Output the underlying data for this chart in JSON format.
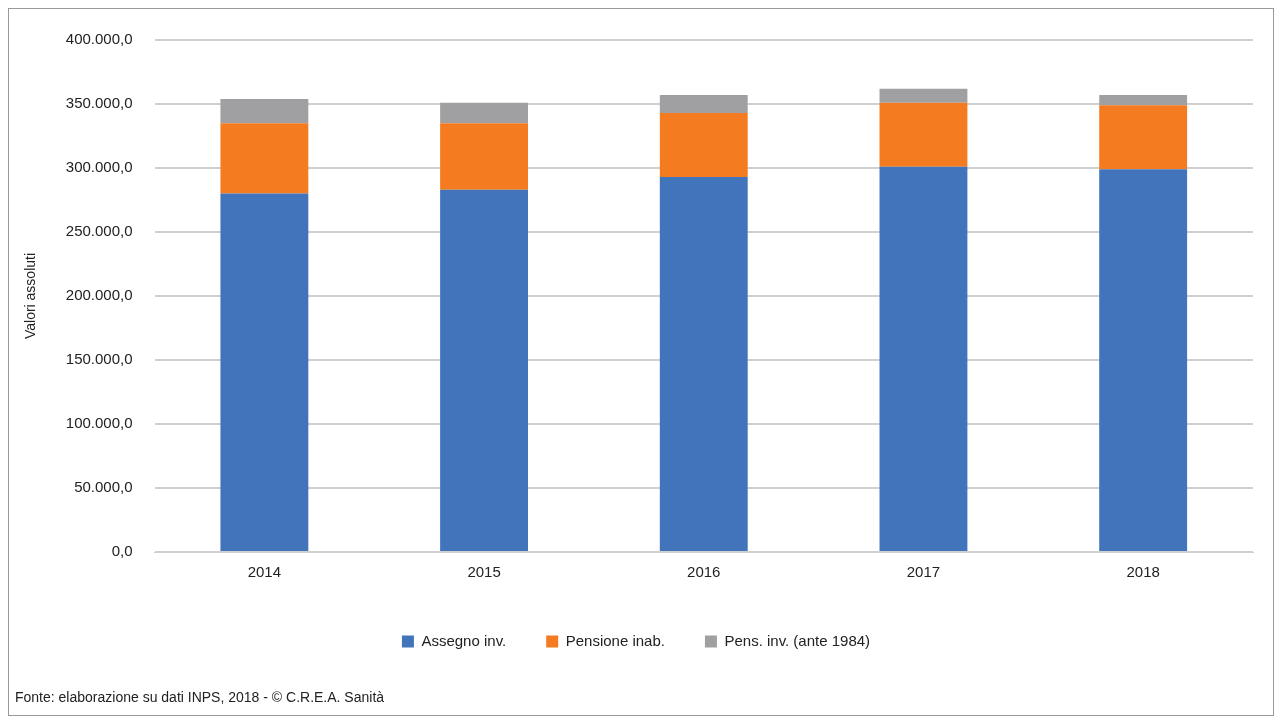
{
  "chart_data": {
    "type": "bar",
    "stacked": true,
    "ylabel": "Valori assoluti",
    "categories": [
      "2014",
      "2015",
      "2016",
      "2017",
      "2018"
    ],
    "series": [
      {
        "name": "Assegno inv.",
        "color": "#4174bb",
        "values": [
          280000,
          283000,
          293000,
          301000,
          299000
        ]
      },
      {
        "name": "Pensione inab.",
        "color": "#f47b20",
        "values": [
          55000,
          52000,
          50000,
          50000,
          50000
        ]
      },
      {
        "name": "Pens. inv. (ante 1984)",
        "color": "#a0a0a3",
        "values": [
          19000,
          16000,
          14000,
          11000,
          8000
        ]
      }
    ],
    "ylim": [
      0,
      400000
    ],
    "yticks": [
      {
        "value": 0,
        "label": "0,0"
      },
      {
        "value": 50000,
        "label": "50.000,0"
      },
      {
        "value": 100000,
        "label": "100.000,0"
      },
      {
        "value": 150000,
        "label": "150.000,0"
      },
      {
        "value": 200000,
        "label": "200.000,0"
      },
      {
        "value": 250000,
        "label": "250.000,0"
      },
      {
        "value": 300000,
        "label": "300.000,0"
      },
      {
        "value": 350000,
        "label": "350.000,0"
      },
      {
        "value": 400000,
        "label": "400.000,0"
      }
    ],
    "grid": "y",
    "legend": "bottom",
    "annotations": [
      "Fonte: elaborazione su dati INPS, 2018 - © C.R.E.A. Sanità"
    ]
  }
}
